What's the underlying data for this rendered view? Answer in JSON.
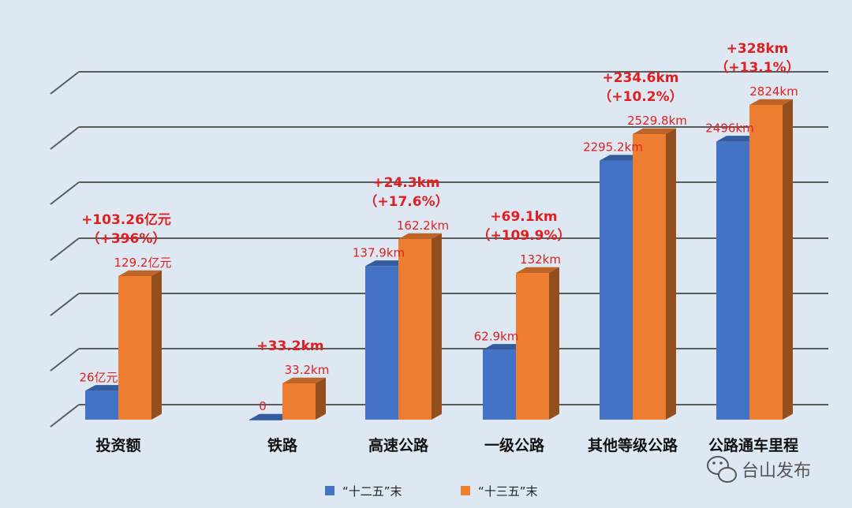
{
  "chart_data": {
    "type": "bar",
    "categories": [
      "投资额",
      "铁路",
      "高速公路",
      "一级公路",
      "其他等级公路",
      "公路通车里程"
    ],
    "series": [
      {
        "name": "“十二五”末",
        "color": "#4472c4",
        "values": [
          26,
          0,
          137.9,
          62.9,
          2295.2,
          2496
        ],
        "labels": [
          "26亿元",
          "0",
          "137.9km",
          "62.9km",
          "2295.2km",
          "2496km"
        ]
      },
      {
        "name": "“十三五”末",
        "color": "#ed7d31",
        "values": [
          129.2,
          33.2,
          162.2,
          132,
          2529.8,
          2824
        ],
        "labels": [
          "129.2亿元",
          "33.2km",
          "162.2km",
          "132km",
          "2529.8km",
          "2824km"
        ]
      }
    ],
    "changes": [
      [
        "+103.26亿元",
        "（+396%）"
      ],
      [
        "+33.2km"
      ],
      [
        "+24.3km",
        "（+17.6%）"
      ],
      [
        "+69.1km",
        "（+109.9%）"
      ],
      [
        "+234.6km",
        "（+10.2%）"
      ],
      [
        "+328km",
        "（+13.1%）"
      ]
    ],
    "gridlines": true,
    "legend_position": "bottom-center"
  },
  "watermark": {
    "text": "台山发布",
    "icon": "wechat-icon"
  }
}
